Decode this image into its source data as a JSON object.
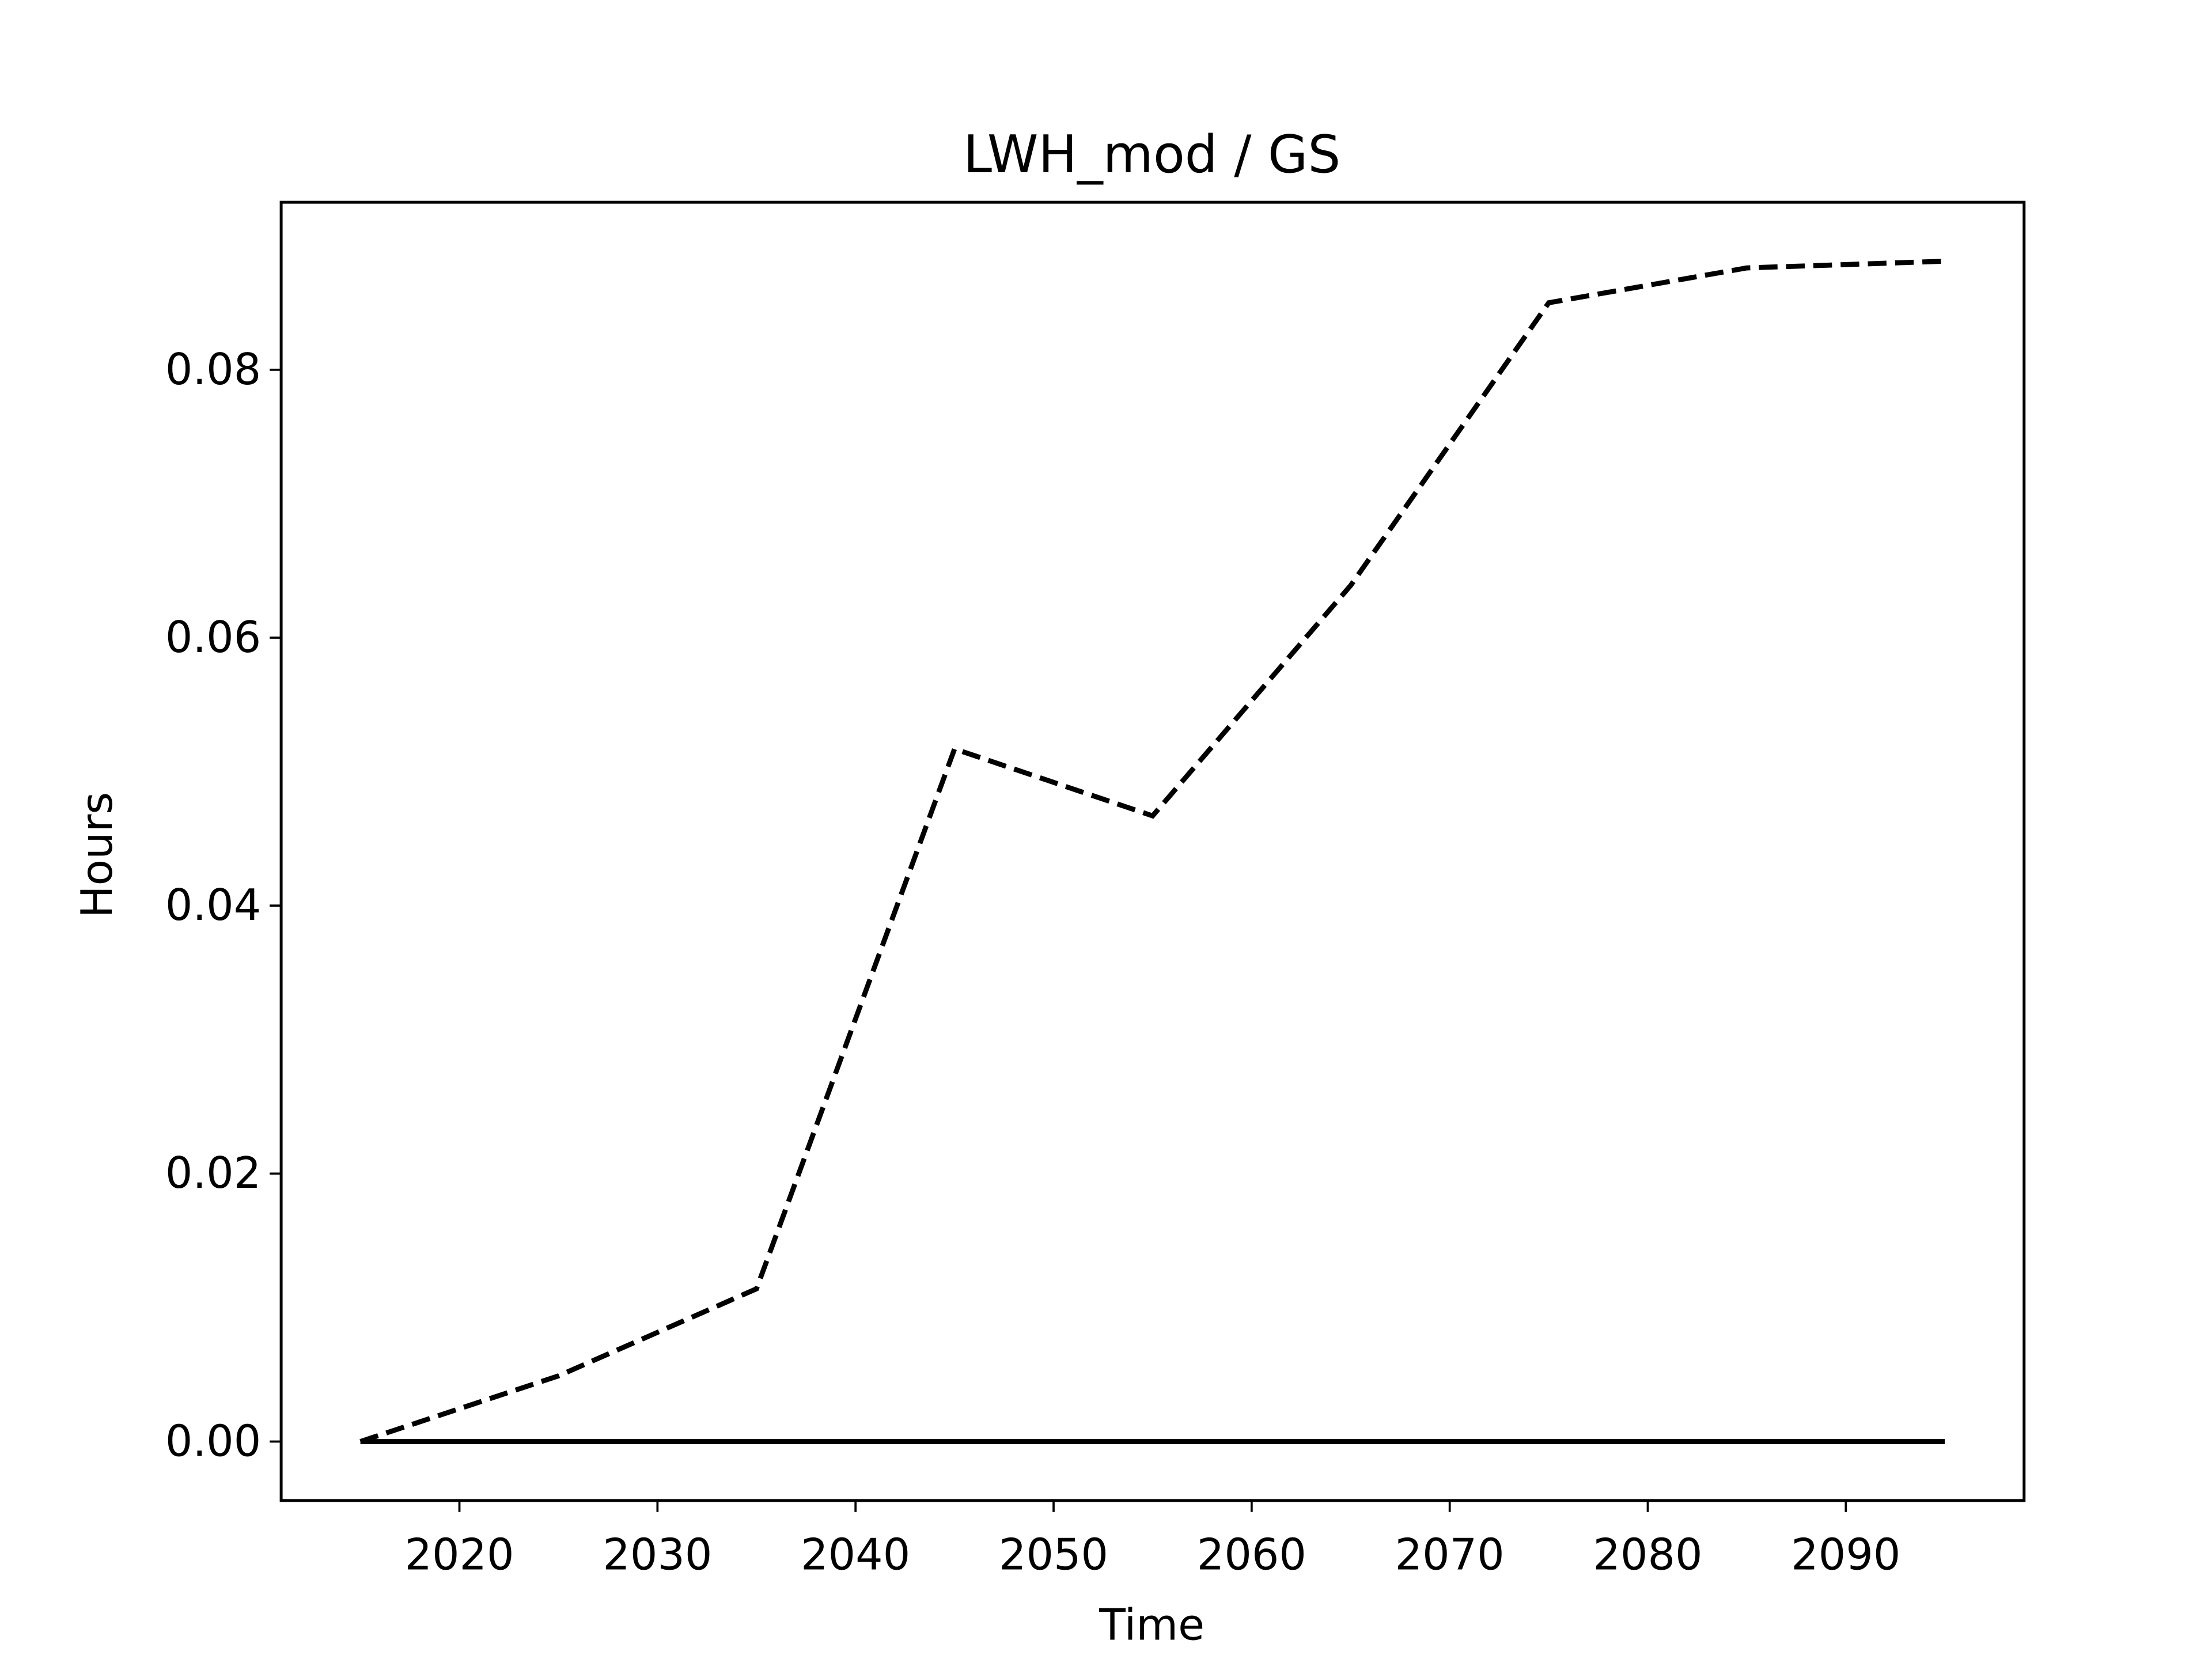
{
  "chart_data": {
    "type": "line",
    "title": "LWH_mod / GS",
    "x_label": "Time",
    "y_label": "Hours",
    "x": [
      2015,
      2025,
      2035,
      2045,
      2055,
      2065,
      2075,
      2085,
      2095
    ],
    "series": [
      {
        "color": "#000000",
        "linestyle": "dashed",
        "values": [
          0,
          0.0049,
          0.0114,
          0.0517,
          0.0467,
          0.0639,
          0.085,
          0.0876,
          0.0881
        ]
      },
      {
        "color": "#000000",
        "linestyle": "solid",
        "values": [
          0,
          0,
          0,
          0,
          0,
          0,
          0,
          0,
          0
        ]
      }
    ],
    "xlim": [
      2011,
      2099
    ],
    "ylim": [
      -0.0044,
      0.0925
    ],
    "xticks": [
      2020,
      2030,
      2040,
      2050,
      2060,
      2070,
      2080,
      2090
    ],
    "yticks": [
      {
        "value": 0,
        "label": "0.00"
      },
      {
        "value": 0.02,
        "label": "0.02"
      },
      {
        "value": 0.04,
        "label": "0.04"
      },
      {
        "value": 0.06,
        "label": "0.06"
      },
      {
        "value": 0.08,
        "label": "0.08"
      }
    ],
    "grid": false
  }
}
